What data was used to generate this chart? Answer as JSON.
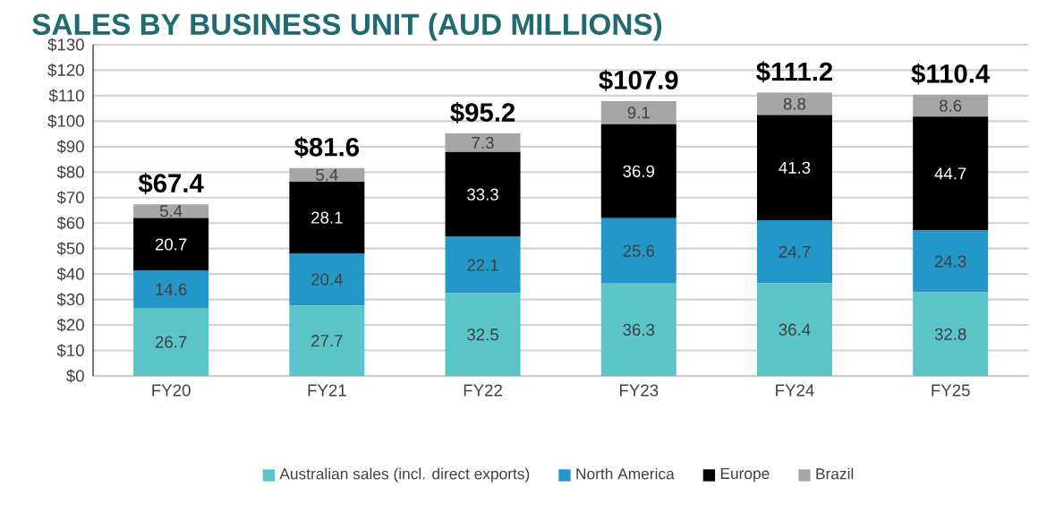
{
  "chart_data": {
    "type": "bar",
    "stacked": true,
    "title": "SALES BY BUSINESS UNIT (AUD MILLIONS)",
    "categories": [
      "FY20",
      "FY21",
      "FY22",
      "FY23",
      "FY24",
      "FY25"
    ],
    "series": [
      {
        "name": "Australian sales (incl. direct exports)",
        "color": "#5bc4c8",
        "values": [
          26.7,
          27.7,
          32.5,
          36.3,
          36.4,
          32.8
        ],
        "value_labels": [
          "26.7",
          "27.7",
          "32.5",
          "36.3",
          "36.4",
          "32.8"
        ]
      },
      {
        "name": "North America",
        "color": "#2596c8",
        "values": [
          14.6,
          20.4,
          22.1,
          25.6,
          24.7,
          24.3
        ],
        "value_labels": [
          "14.6",
          "20.4",
          "22.1",
          "25.6",
          "24.7",
          "24.3"
        ]
      },
      {
        "name": "Europe",
        "color": "#000000",
        "values": [
          20.7,
          28.1,
          33.3,
          36.9,
          41.3,
          44.7
        ],
        "value_labels": [
          "20.7",
          "28.1",
          "33.3",
          "36.9",
          "41.3",
          "44.7"
        ]
      },
      {
        "name": "Brazil",
        "color": "#a6a6a6",
        "values": [
          5.4,
          5.4,
          7.3,
          9.1,
          8.8,
          8.6
        ],
        "value_labels": [
          "5.4",
          "5.4",
          "7.3",
          "9.1",
          "8.8",
          "8.6"
        ]
      }
    ],
    "totals": [
      "$67.4",
      "$81.6",
      "$95.2",
      "$107.9",
      "$111.2",
      "$110.4"
    ],
    "ylim": [
      0,
      130
    ],
    "yticks": [
      {
        "value": 0,
        "label": "$0"
      },
      {
        "value": 10,
        "label": "$10"
      },
      {
        "value": 20,
        "label": "$20"
      },
      {
        "value": 30,
        "label": "$30"
      },
      {
        "value": 40,
        "label": "$40"
      },
      {
        "value": 50,
        "label": "$50"
      },
      {
        "value": 60,
        "label": "$60"
      },
      {
        "value": 70,
        "label": "$70"
      },
      {
        "value": 80,
        "label": "$80"
      },
      {
        "value": 90,
        "label": "$90"
      },
      {
        "value": 100,
        "label": "$100"
      },
      {
        "value": 110,
        "label": "$110"
      },
      {
        "value": 120,
        "label": "$120"
      },
      {
        "value": 130,
        "label": "$130"
      }
    ],
    "grid": "y",
    "legend": "bottom"
  }
}
